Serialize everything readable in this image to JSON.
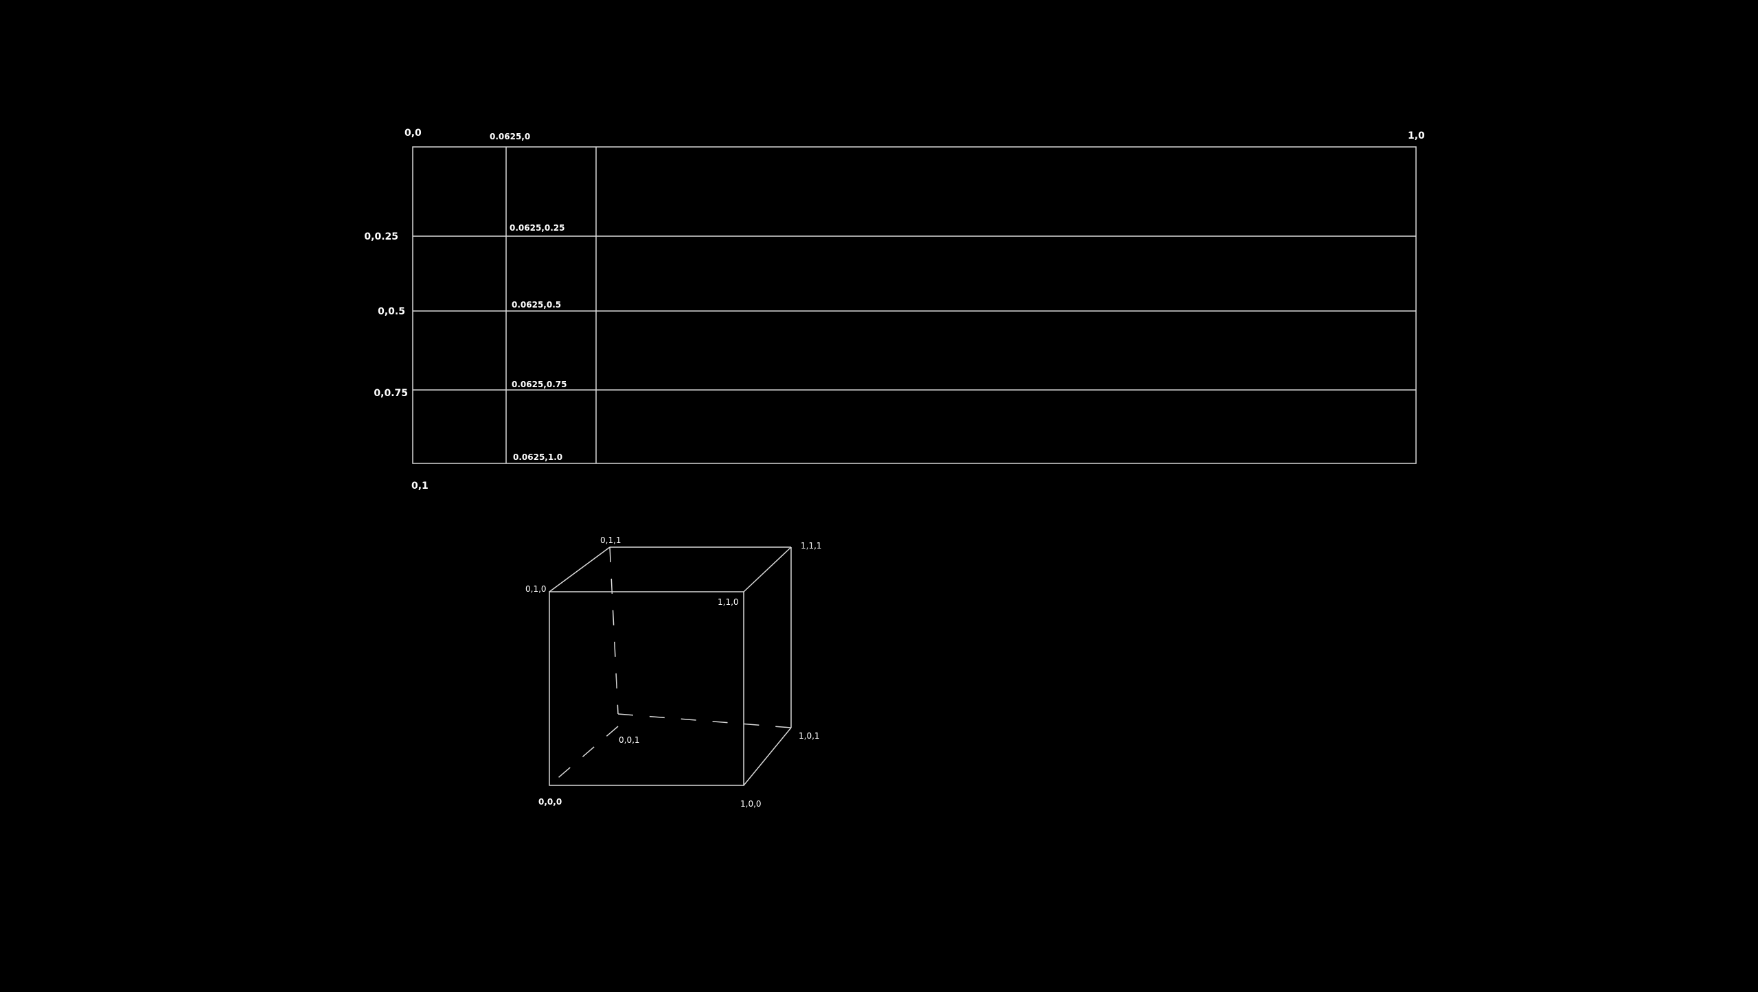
{
  "colors": {
    "background": "#000000",
    "line": "#d8d8d8",
    "text": "#ffffff"
  },
  "grid": {
    "corner_labels": {
      "top_left": "0,0",
      "top_right": "1,0",
      "bottom_left": "0,1",
      "top_column": "0.0625,0"
    },
    "row_labels_left": [
      "0,0.25",
      "0,0.5",
      "0,0.75"
    ],
    "row_labels_inner": [
      "0.0625,0.25",
      "0.0625,0.5",
      "0.0625,0.75",
      "0.0625,1.0"
    ]
  },
  "cube": {
    "vertices": {
      "v000": "0,0,0",
      "v100": "1,0,0",
      "v010": "0,1,0",
      "v110": "1,1,0",
      "v001": "0,0,1",
      "v101": "1,0,1",
      "v011": "0,1,1",
      "v111": "1,1,1"
    }
  }
}
